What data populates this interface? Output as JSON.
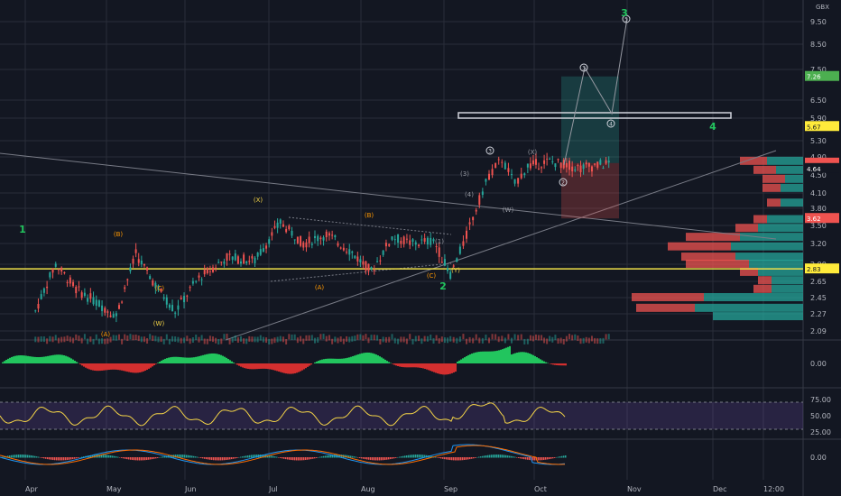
{
  "currency": "GBX",
  "colors": {
    "background": "#131722",
    "grid": "#2a2e39",
    "up": "#26a69a",
    "down": "#ef5350",
    "hline": "#f0e14a",
    "wave_green": "#22c55e",
    "wave_yellow": "#f5d547",
    "wave_orange": "#ff9800",
    "price_tag_red": "#ef5350",
    "price_tag_yellow": "#ffeb3b",
    "price_tag_green": "#4caf50"
  },
  "chart_data": {
    "type": "candlestick",
    "title": "",
    "yscale": "log",
    "ylim": [
      2.0,
      11.5
    ],
    "x_labels": [
      "Apr",
      "May",
      "Jun",
      "Jul",
      "Aug",
      "Sep",
      "Oct",
      "Nov",
      "Dec",
      "12:00"
    ],
    "y_ticks": [
      "9.50",
      "8.50",
      "7.50",
      "6.50",
      "5.90",
      "5.30",
      "4.90",
      "4.50",
      "4.10",
      "3.80",
      "3.50",
      "3.20",
      "2.90",
      "2.65",
      "2.45",
      "2.27",
      "2.09"
    ],
    "price_tags": [
      {
        "label": "7.26",
        "value": 7.26,
        "color": "price_tag_green"
      },
      {
        "label": "5.67",
        "value": 5.67,
        "color": "price_tag_yellow"
      },
      {
        "label": "4.76",
        "value": 4.76,
        "color": "price_tag_red"
      },
      {
        "label": "02:15:39",
        "value": 4.7,
        "color": "price_tag_red"
      },
      {
        "label": "4.64",
        "value": 4.64,
        "color": "price_tag_gray"
      },
      {
        "label": "3.62",
        "value": 3.62,
        "color": "price_tag_red"
      },
      {
        "label": "2.83",
        "value": 2.83,
        "color": "price_tag_yellow"
      }
    ],
    "horizontal_line": 2.83,
    "price_path": [
      [
        "Apr",
        2.3
      ],
      [
        "Apr",
        2.9
      ],
      [
        "Apr",
        2.55
      ],
      [
        "Apr",
        2.4
      ],
      [
        "May",
        2.25
      ],
      [
        "May",
        3.05
      ],
      [
        "May",
        2.6
      ],
      [
        "May",
        2.3
      ],
      [
        "Jun",
        2.7
      ],
      [
        "Jun",
        3.0
      ],
      [
        "Jun",
        2.95
      ],
      [
        "Jul",
        3.55
      ],
      [
        "Jul",
        3.2
      ],
      [
        "Jul",
        3.35
      ],
      [
        "Jul",
        3.1
      ],
      [
        "Aug",
        2.8
      ],
      [
        "Aug",
        3.3
      ],
      [
        "Aug",
        3.2
      ],
      [
        "Aug",
        3.25
      ],
      [
        "Sep",
        2.75
      ],
      [
        "Sep",
        3.2
      ],
      [
        "Sep",
        3.8
      ],
      [
        "Sep",
        4.5
      ],
      [
        "Sep",
        4.85
      ],
      [
        "Sep",
        4.3
      ],
      [
        "Sep",
        4.7
      ],
      [
        "Oct",
        4.8
      ],
      [
        "Oct",
        4.65
      ],
      [
        "Oct",
        4.76
      ]
    ],
    "wave_labels": [
      {
        "text": "1",
        "color": "wave_green"
      },
      {
        "text": "(B)",
        "color": "wave_orange"
      },
      {
        "text": "(C)",
        "color": "wave_orange"
      },
      {
        "text": "(A)",
        "color": "wave_orange"
      },
      {
        "text": "(W)",
        "color": "wave_yellow"
      },
      {
        "text": "(X)",
        "color": "wave_yellow"
      },
      {
        "text": "(B)",
        "color": "wave_orange"
      },
      {
        "text": "(A)",
        "color": "wave_orange"
      },
      {
        "text": "(C)",
        "color": "wave_orange"
      },
      {
        "text": "(Y)",
        "color": "wave_yellow"
      },
      {
        "text": "2",
        "color": "wave_green"
      },
      {
        "text": "(1)",
        "color": "gray"
      },
      {
        "text": "(3)",
        "color": "gray"
      },
      {
        "text": "(4)",
        "color": "gray"
      },
      {
        "text": "(W)",
        "color": "gray"
      },
      {
        "text": "(X)",
        "color": "gray"
      },
      {
        "text": "3",
        "color": "white"
      },
      {
        "text": "2",
        "color": "white"
      },
      {
        "text": "3",
        "color": "white"
      },
      {
        "text": "4",
        "color": "white"
      },
      {
        "text": "5",
        "color": "white"
      },
      {
        "text": "3",
        "color": "wave_green"
      },
      {
        "text": "4",
        "color": "wave_green"
      }
    ],
    "indicator_ticks": [
      {
        "panel": "histogram",
        "labels": [
          "0.00"
        ]
      },
      {
        "panel": "rsi",
        "labels": [
          "75.00",
          "50.00",
          "25.00"
        ]
      },
      {
        "panel": "macd",
        "labels": [
          "0.00"
        ]
      }
    ],
    "volume_profile": [
      {
        "price": 4.8,
        "up": 40,
        "down": 30
      },
      {
        "price": 4.6,
        "up": 30,
        "down": 25
      },
      {
        "price": 4.4,
        "up": 20,
        "down": 25
      },
      {
        "price": 4.2,
        "up": 25,
        "down": 20
      },
      {
        "price": 3.9,
        "up": 25,
        "down": 15
      },
      {
        "price": 3.6,
        "up": 40,
        "down": 15
      },
      {
        "price": 3.45,
        "up": 50,
        "down": 25
      },
      {
        "price": 3.3,
        "up": 70,
        "down": 60
      },
      {
        "price": 3.15,
        "up": 80,
        "down": 70
      },
      {
        "price": 3.0,
        "up": 75,
        "down": 60
      },
      {
        "price": 2.9,
        "up": 60,
        "down": 70
      },
      {
        "price": 2.78,
        "up": 50,
        "down": 20
      },
      {
        "price": 2.66,
        "up": 35,
        "down": 15
      },
      {
        "price": 2.55,
        "up": 35,
        "down": 20
      },
      {
        "price": 2.45,
        "up": 110,
        "down": 80
      },
      {
        "price": 2.33,
        "up": 120,
        "down": 65
      },
      {
        "price": 2.24,
        "up": 100,
        "down": 0
      }
    ]
  }
}
